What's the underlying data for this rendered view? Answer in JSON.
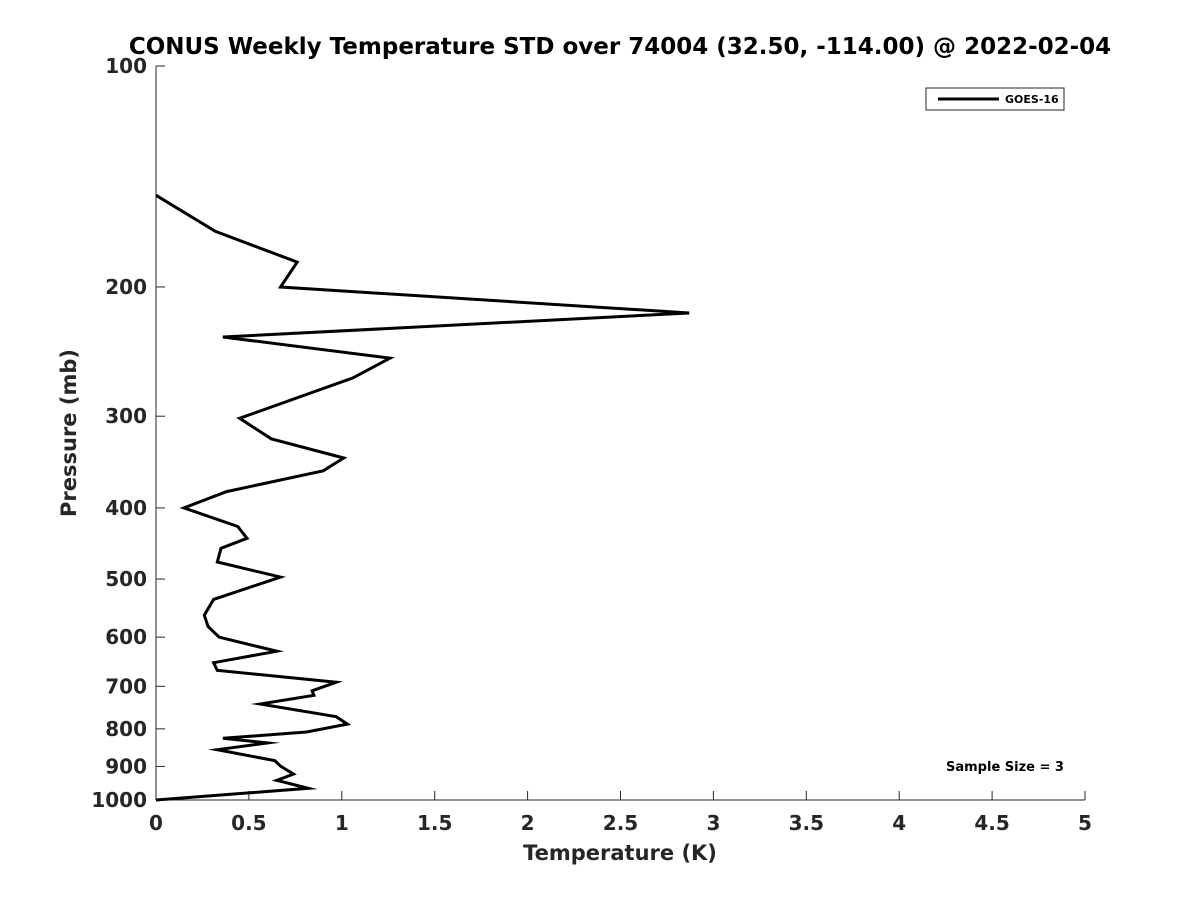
{
  "chart_data": {
    "type": "line",
    "title": "CONUS Weekly Temperature STD over 74004 (32.50, -114.00) @ 2022-02-04",
    "xlabel": "Temperature (K)",
    "ylabel": "Pressure (mb)",
    "xlim": [
      0,
      5
    ],
    "ylim": [
      100,
      1000
    ],
    "y_scale": "log",
    "y_reversed": true,
    "grid": false,
    "legend_position": "top-right",
    "x_ticks": [
      0,
      0.5,
      1,
      1.5,
      2,
      2.5,
      3,
      3.5,
      4,
      4.5,
      5
    ],
    "x_tick_labels": [
      "0",
      "0.5",
      "1",
      "1.5",
      "2",
      "2.5",
      "3",
      "3.5",
      "4",
      "4.5",
      "5"
    ],
    "y_ticks": [
      100,
      200,
      300,
      400,
      500,
      600,
      700,
      800,
      900,
      1000
    ],
    "y_tick_labels": [
      "100",
      "200",
      "300",
      "400",
      "500",
      "600",
      "700",
      "800",
      "900",
      "1000"
    ],
    "annotation": "Sample Size = 3",
    "series": [
      {
        "name": "GOES-16",
        "color": "#000000",
        "x": [
          0.0,
          0.32,
          0.76,
          0.67,
          2.87,
          0.36,
          1.26,
          1.06,
          0.45,
          0.62,
          1.01,
          0.9,
          0.38,
          0.15,
          0.44,
          0.49,
          0.35,
          0.33,
          0.67,
          0.31,
          0.26,
          0.28,
          0.34,
          0.65,
          0.31,
          0.33,
          0.97,
          0.84,
          0.85,
          0.56,
          0.97,
          1.03,
          0.81,
          0.36,
          0.6,
          0.33,
          0.64,
          0.67,
          0.74,
          0.65,
          0.82,
          0.0
        ],
        "y": [
          150,
          168,
          185,
          200,
          217,
          234,
          250,
          266,
          302,
          322,
          342,
          356,
          380,
          400,
          424,
          440,
          454,
          474,
          497,
          533,
          560,
          580,
          600,
          627,
          650,
          666,
          691,
          710,
          720,
          740,
          770,
          788,
          808,
          824,
          836,
          854,
          884,
          899,
          922,
          940,
          964,
          1000
        ]
      }
    ]
  }
}
